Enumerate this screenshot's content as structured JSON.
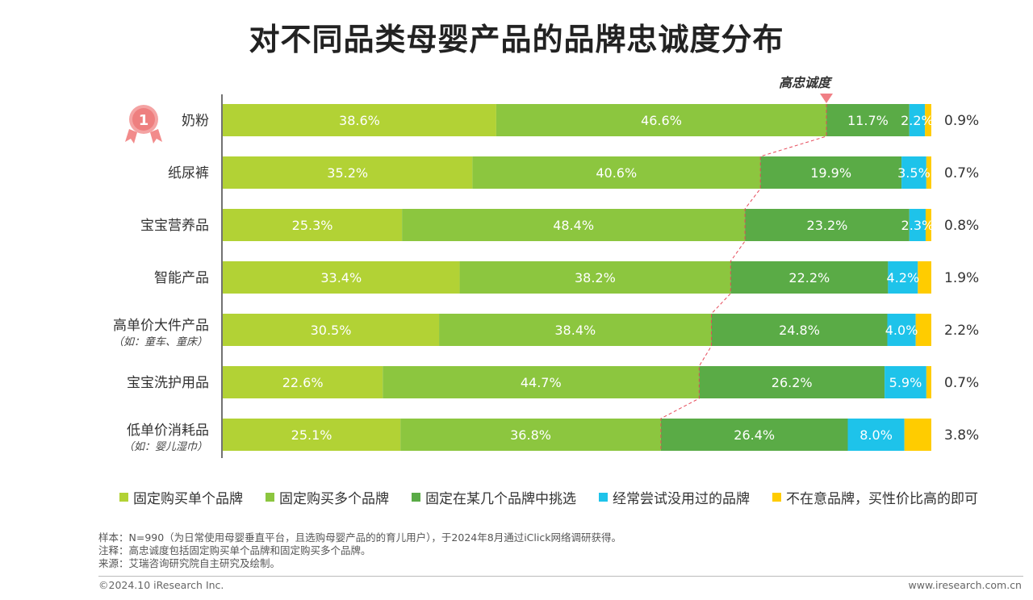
{
  "title": "对不同品类母婴产品的品牌忠诚度分布",
  "high_loyalty_label": "高忠诚度",
  "badge_number": "1",
  "chart_data": {
    "type": "bar",
    "orientation": "horizontal",
    "stacked": true,
    "unit": "%",
    "title": "对不同品类母婴产品的品牌忠诚度分布",
    "categories": [
      {
        "name": "奶粉",
        "sub": ""
      },
      {
        "name": "纸尿裤",
        "sub": ""
      },
      {
        "name": "宝宝营养品",
        "sub": ""
      },
      {
        "name": "智能产品",
        "sub": ""
      },
      {
        "name": "高单价大件产品",
        "sub": "（如：童车、童床）"
      },
      {
        "name": "宝宝洗护用品",
        "sub": ""
      },
      {
        "name": "低单价消耗品",
        "sub": "（如：婴儿湿巾）"
      }
    ],
    "series": [
      {
        "name": "固定购买单个品牌",
        "color": "#b2d235",
        "values": [
          38.6,
          35.2,
          25.3,
          33.4,
          30.5,
          22.6,
          25.1
        ]
      },
      {
        "name": "固定购买多个品牌",
        "color": "#8cc63f",
        "values": [
          46.6,
          40.6,
          48.4,
          38.2,
          38.4,
          44.7,
          36.8
        ]
      },
      {
        "name": "固定在某几个品牌中挑选",
        "color": "#5aab46",
        "values": [
          11.7,
          19.9,
          23.2,
          22.2,
          24.8,
          26.2,
          26.4
        ]
      },
      {
        "name": "经常尝试没用过的品牌",
        "color": "#1ec3ea",
        "values": [
          2.2,
          3.5,
          2.3,
          4.2,
          4.0,
          5.9,
          8.0
        ]
      },
      {
        "name": "不在意品牌，买性价比高的即可",
        "color": "#ffcc00",
        "values": [
          0.9,
          0.7,
          0.8,
          1.9,
          2.2,
          0.7,
          3.8
        ]
      }
    ],
    "legend_position": "bottom"
  },
  "notes": [
    "样本：N=990（为日常使用母婴垂直平台，且选购母婴产品的的育儿用户），于2024年8月通过iClick网络调研获得。",
    "注释：高忠诚度包括固定购买单个品牌和固定购买多个品牌。",
    "来源：艾瑞咨询研究院自主研究及绘制。"
  ],
  "copyright": "©2024.10 iResearch Inc.",
  "website": "www.iresearch.com.cn"
}
